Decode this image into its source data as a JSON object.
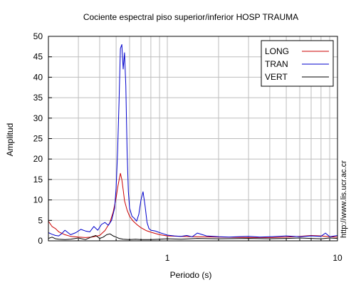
{
  "chart_data": {
    "type": "line",
    "title": "Cociente espectral piso superior/inferior  HOSP TRAUMA",
    "xlabel": "Periodo (s)",
    "ylabel": "Amplitud",
    "xscale": "log",
    "xlim": [
      0.2,
      10
    ],
    "ylim": [
      0,
      50
    ],
    "xticks": [
      1,
      10
    ],
    "yticks": [
      0,
      5,
      10,
      15,
      20,
      25,
      30,
      35,
      40,
      45,
      50
    ],
    "grid": true,
    "legend_position": "top-right",
    "side_text": "http://www.lis.ucr.ac.cr",
    "series": [
      {
        "name": "LONG",
        "color": "#cc0000",
        "x": [
          0.2,
          0.21,
          0.22,
          0.23,
          0.25,
          0.27,
          0.3,
          0.33,
          0.36,
          0.4,
          0.43,
          0.46,
          0.48,
          0.5,
          0.51,
          0.52,
          0.53,
          0.54,
          0.55,
          0.56,
          0.58,
          0.6,
          0.63,
          0.67,
          0.7,
          0.75,
          0.8,
          0.9,
          1.0,
          1.2,
          1.5,
          2.0,
          3.0,
          4.0,
          5.0,
          6.0,
          7.0,
          8.0,
          9.0,
          10.0
        ],
        "y": [
          4.8,
          3.5,
          3.0,
          2.2,
          1.5,
          1.1,
          0.9,
          0.8,
          0.9,
          1.3,
          2.5,
          4.5,
          7.0,
          10.5,
          13.0,
          14.8,
          16.5,
          15.0,
          12.5,
          9.8,
          7.5,
          6.0,
          4.8,
          3.8,
          3.2,
          2.5,
          2.1,
          1.5,
          1.2,
          1.1,
          1.0,
          0.9,
          0.8,
          0.8,
          0.9,
          1.1,
          1.3,
          1.2,
          1.0,
          0.9
        ]
      },
      {
        "name": "TRAN",
        "color": "#0000cc",
        "x": [
          0.2,
          0.21,
          0.22,
          0.23,
          0.24,
          0.25,
          0.27,
          0.29,
          0.31,
          0.33,
          0.35,
          0.37,
          0.39,
          0.41,
          0.43,
          0.45,
          0.47,
          0.49,
          0.5,
          0.51,
          0.52,
          0.53,
          0.54,
          0.55,
          0.56,
          0.57,
          0.58,
          0.59,
          0.6,
          0.61,
          0.62,
          0.64,
          0.66,
          0.68,
          0.7,
          0.72,
          0.74,
          0.76,
          0.78,
          0.8,
          0.85,
          0.9,
          0.95,
          1.0,
          1.1,
          1.2,
          1.3,
          1.4,
          1.5,
          1.7,
          2.0,
          2.3,
          2.6,
          3.0,
          3.5,
          4.0,
          4.5,
          5.0,
          6.0,
          7.0,
          8.0,
          8.5,
          9.0,
          10.0
        ],
        "y": [
          2.0,
          1.6,
          1.3,
          1.2,
          1.8,
          2.6,
          1.5,
          2.0,
          2.8,
          2.4,
          2.2,
          3.5,
          2.6,
          4.0,
          4.5,
          3.8,
          5.0,
          8.0,
          13.0,
          22.0,
          34.0,
          47.0,
          48.0,
          42.0,
          46.0,
          38.0,
          22.0,
          12.0,
          8.0,
          7.0,
          6.0,
          5.5,
          4.8,
          6.5,
          10.0,
          12.0,
          8.5,
          4.5,
          3.0,
          2.6,
          2.4,
          2.0,
          1.7,
          1.4,
          1.2,
          1.1,
          1.3,
          1.0,
          1.9,
          1.2,
          1.0,
          0.9,
          1.0,
          1.1,
          0.9,
          1.0,
          1.1,
          1.2,
          1.0,
          1.2,
          1.1,
          1.9,
          1.0,
          1.3
        ]
      },
      {
        "name": "VERT",
        "color": "#000000",
        "x": [
          0.2,
          0.21,
          0.22,
          0.23,
          0.25,
          0.27,
          0.3,
          0.33,
          0.36,
          0.38,
          0.4,
          0.42,
          0.44,
          0.46,
          0.48,
          0.5,
          0.52,
          0.55,
          0.6,
          0.65,
          0.7,
          0.8,
          0.9,
          1.0,
          1.2,
          1.5,
          2.0,
          3.0,
          4.0,
          5.0,
          6.0,
          7.0,
          8.0,
          9.0,
          10.0
        ],
        "y": [
          0.6,
          0.9,
          0.5,
          0.4,
          0.3,
          0.4,
          0.7,
          0.3,
          1.0,
          1.3,
          0.6,
          0.9,
          1.5,
          1.7,
          1.2,
          0.9,
          0.6,
          0.4,
          0.3,
          0.4,
          0.3,
          0.3,
          0.4,
          0.5,
          0.4,
          0.6,
          0.5,
          0.6,
          0.5,
          0.6,
          0.7,
          0.6,
          0.5,
          0.7,
          0.6
        ]
      }
    ]
  }
}
